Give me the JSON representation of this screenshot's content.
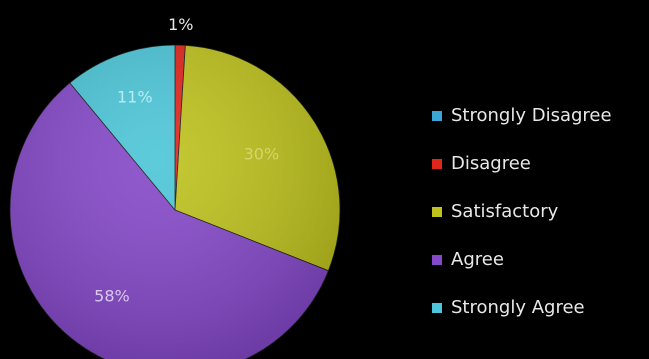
{
  "chart_data": {
    "type": "pie",
    "start_angle_deg": 0,
    "direction": "clockwise",
    "legend_position": "right",
    "slices": [
      {
        "label": "Disagree",
        "value": 1,
        "display": "1%",
        "color": "#e0251b",
        "label_color": "#e8e8e8"
      },
      {
        "label": "Satisfactory",
        "value": 30,
        "display": "30%",
        "color": "#bec21c",
        "label_color": "#d7d56a"
      },
      {
        "label": "Agree",
        "value": 58,
        "display": "58%",
        "color": "#8548c9",
        "label_color": "#d9c8ee"
      },
      {
        "label": "Strongly Agree",
        "value": 11,
        "display": "11%",
        "color": "#4cc6d8",
        "label_color": "#b8ecf3"
      }
    ],
    "legend": [
      {
        "label": "Strongly Disagree",
        "color": "#3aa6d6"
      },
      {
        "label": "Disagree",
        "color": "#e0251b"
      },
      {
        "label": "Satisfactory",
        "color": "#bec21c"
      },
      {
        "label": "Agree",
        "color": "#8548c9"
      },
      {
        "label": "Strongly Agree",
        "color": "#4cc6d8"
      }
    ]
  }
}
